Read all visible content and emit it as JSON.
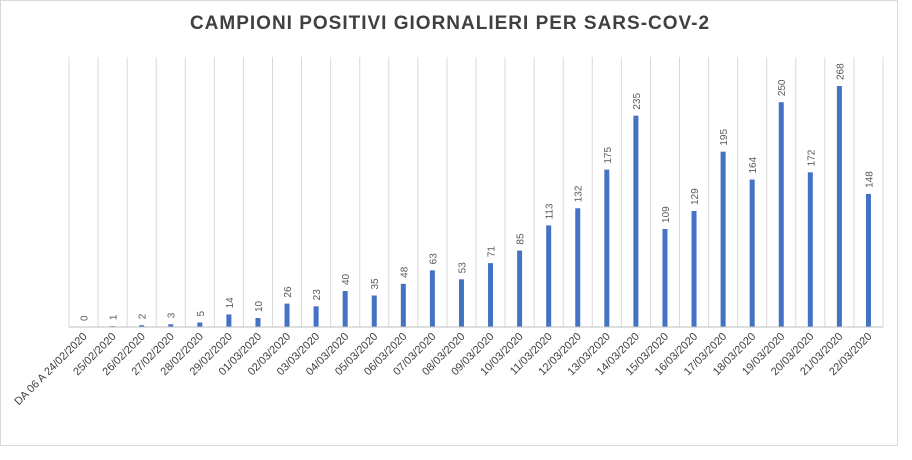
{
  "chart_data": {
    "type": "bar",
    "title": "CAMPIONI POSITIVI GIORNALIERI PER SARS-COV-2",
    "xlabel": "",
    "ylabel": "",
    "categories": [
      "DA 06 A 24/02/2020",
      "25/02/2020",
      "26/02/2020",
      "27/02/2020",
      "28/02/2020",
      "29/02/2020",
      "01/03/2020",
      "02/03/2020",
      "03/03/2020",
      "04/03/2020",
      "05/03/2020",
      "06/03/2020",
      "07/03/2020",
      "08/03/2020",
      "09/03/2020",
      "10/03/2020",
      "11/03/2020",
      "12/03/2020",
      "13/03/2020",
      "14/03/2020",
      "15/03/2020",
      "16/03/2020",
      "17/03/2020",
      "18/03/2020",
      "19/03/2020",
      "20/03/2020",
      "21/03/2020",
      "22/03/2020"
    ],
    "values": [
      0,
      1,
      2,
      3,
      5,
      14,
      10,
      26,
      23,
      40,
      35,
      48,
      63,
      53,
      71,
      85,
      113,
      132,
      175,
      235,
      109,
      129,
      195,
      164,
      250,
      172,
      268,
      148
    ],
    "ylim": [
      0,
      300
    ],
    "grid": "vertical",
    "legend": "none",
    "bar_color": "#4472c4"
  }
}
